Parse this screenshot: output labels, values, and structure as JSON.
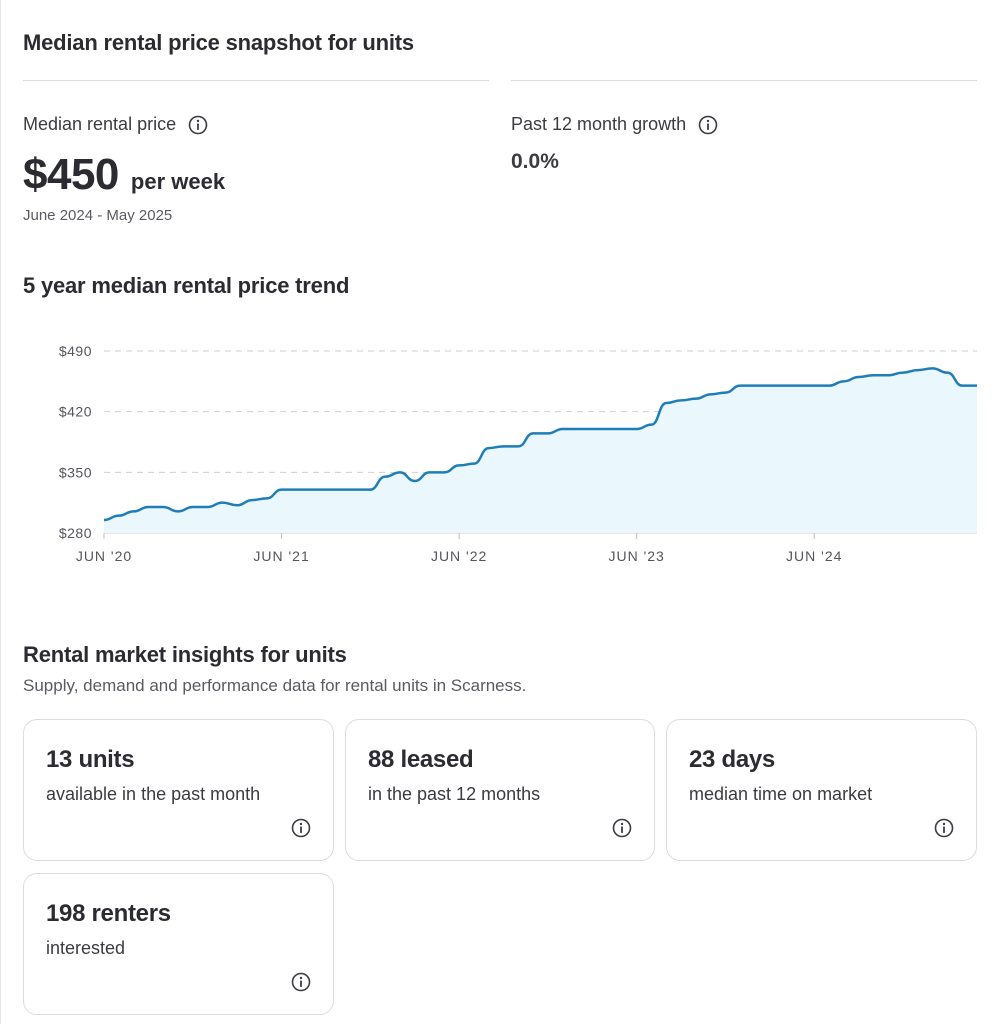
{
  "snapshot": {
    "title": "Median rental price snapshot for units",
    "median_label": "Median rental price",
    "median_value": "$450",
    "median_unit": "per week",
    "period": "June 2024 - May 2025",
    "growth_label": "Past 12 month growth",
    "growth_value": "0.0%"
  },
  "trend": {
    "title": "5 year median rental price trend"
  },
  "chart_data": {
    "type": "area",
    "x_ticks": [
      "JUN '20",
      "JUN '21",
      "JUN '22",
      "JUN '23",
      "JUN '24"
    ],
    "y_ticks": [
      "$490",
      "$420",
      "$350",
      "$280"
    ],
    "ylim": [
      280,
      490
    ],
    "grid": true,
    "line_color": "#1f7db8",
    "fill_color": "#eaf7fc",
    "x": [
      "2020-06",
      "2020-07",
      "2020-08",
      "2020-09",
      "2020-10",
      "2020-11",
      "2020-12",
      "2021-01",
      "2021-02",
      "2021-03",
      "2021-04",
      "2021-05",
      "2021-06",
      "2021-07",
      "2021-08",
      "2021-09",
      "2021-10",
      "2021-11",
      "2021-12",
      "2022-01",
      "2022-02",
      "2022-03",
      "2022-04",
      "2022-05",
      "2022-06",
      "2022-07",
      "2022-08",
      "2022-09",
      "2022-10",
      "2022-11",
      "2022-12",
      "2023-01",
      "2023-02",
      "2023-03",
      "2023-04",
      "2023-05",
      "2023-06",
      "2023-07",
      "2023-08",
      "2023-09",
      "2023-10",
      "2023-11",
      "2023-12",
      "2024-01",
      "2024-02",
      "2024-03",
      "2024-04",
      "2024-05",
      "2024-06",
      "2024-07",
      "2024-08",
      "2024-09",
      "2024-10",
      "2024-11",
      "2024-12",
      "2025-01",
      "2025-02",
      "2025-03",
      "2025-04",
      "2025-05"
    ],
    "values": [
      295,
      300,
      305,
      310,
      310,
      305,
      310,
      310,
      315,
      312,
      318,
      320,
      330,
      330,
      330,
      330,
      330,
      330,
      330,
      345,
      350,
      340,
      350,
      350,
      358,
      360,
      378,
      380,
      380,
      395,
      395,
      400,
      400,
      400,
      400,
      400,
      400,
      405,
      430,
      433,
      435,
      440,
      442,
      450,
      450,
      450,
      450,
      450,
      450,
      450,
      455,
      460,
      462,
      462,
      465,
      468,
      470,
      465,
      450,
      450
    ]
  },
  "insights": {
    "title": "Rental market insights for units",
    "subtitle": "Supply, demand and performance data for rental units in Scarness.",
    "cards": [
      {
        "title": "13 units",
        "subtitle": "available in the past month"
      },
      {
        "title": "88 leased",
        "subtitle": "in the past 12 months"
      },
      {
        "title": "23 days",
        "subtitle": "median time on market"
      },
      {
        "title": "198 renters",
        "subtitle": "interested"
      }
    ]
  },
  "icons": {
    "info": "info-circle-icon"
  }
}
